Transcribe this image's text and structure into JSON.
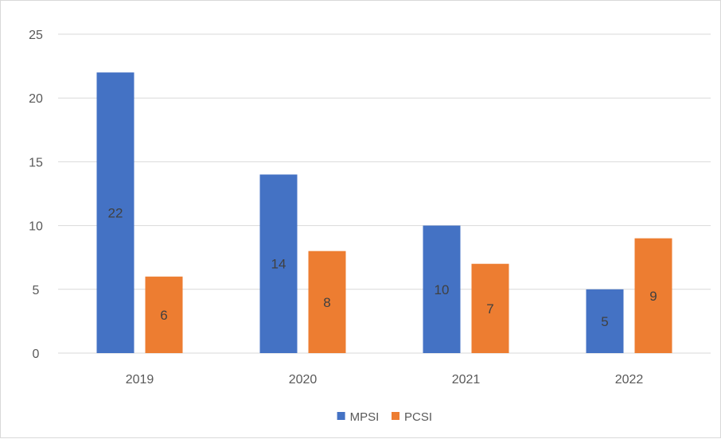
{
  "chart_data": {
    "type": "bar",
    "title": "",
    "xlabel": "",
    "ylabel": "",
    "categories": [
      "2019",
      "2020",
      "2021",
      "2022"
    ],
    "series": [
      {
        "name": "MPSI",
        "values": [
          22,
          14,
          10,
          5
        ],
        "color": "#4472c4"
      },
      {
        "name": "PCSI",
        "values": [
          6,
          8,
          7,
          9
        ],
        "color": "#ed7d31"
      }
    ],
    "ylim": [
      0,
      25
    ],
    "yticks": [
      0,
      5,
      10,
      15,
      20,
      25
    ],
    "grid": true,
    "data_labels": true,
    "legend_position": "bottom"
  }
}
